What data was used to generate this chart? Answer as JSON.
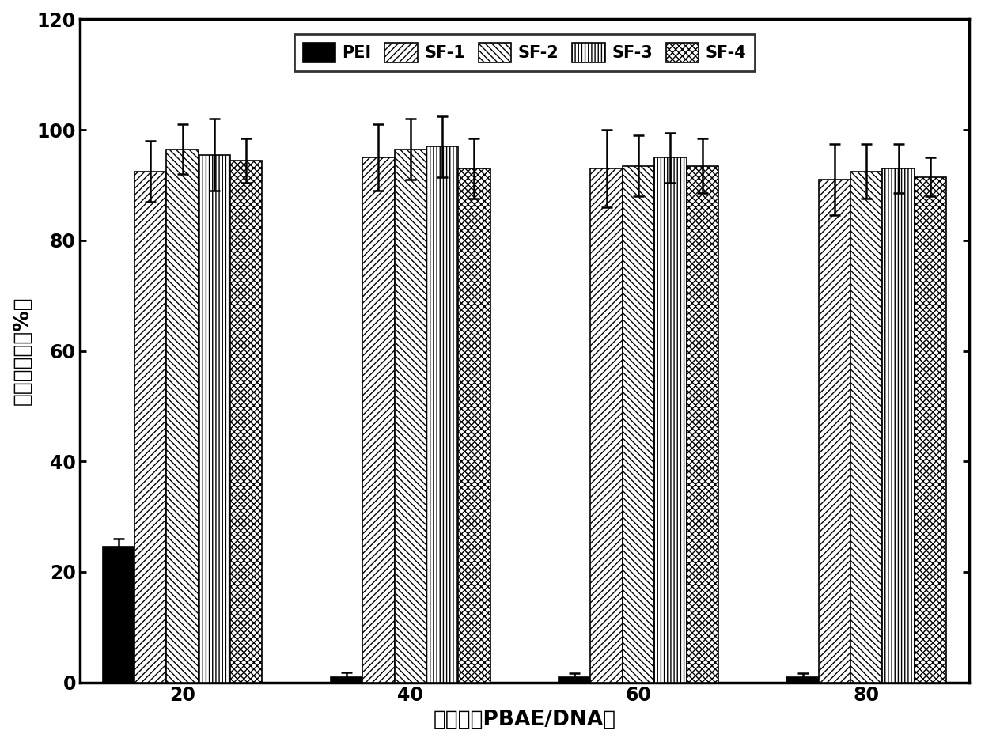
{
  "title": "",
  "xlabel": "质量比（PBAE/DNA）",
  "ylabel": "细胞稳定性（%）",
  "categories": [
    "20",
    "40",
    "60",
    "80"
  ],
  "series": {
    "PEI": {
      "values": [
        24.5,
        1.0,
        1.0,
        1.0
      ],
      "errors": [
        1.5,
        0.8,
        0.6,
        0.7
      ],
      "color": "#000000",
      "hatch": ""
    },
    "SF-1": {
      "values": [
        92.5,
        95.0,
        93.0,
        91.0
      ],
      "errors": [
        5.5,
        6.0,
        7.0,
        6.5
      ],
      "color": "#ffffff",
      "hatch": "////"
    },
    "SF-2": {
      "values": [
        96.5,
        96.5,
        93.5,
        92.5
      ],
      "errors": [
        4.5,
        5.5,
        5.5,
        5.0
      ],
      "color": "#ffffff",
      "hatch": "\\\\\\\\"
    },
    "SF-3": {
      "values": [
        95.5,
        97.0,
        95.0,
        93.0
      ],
      "errors": [
        6.5,
        5.5,
        4.5,
        4.5
      ],
      "color": "#ffffff",
      "hatch": "||||"
    },
    "SF-4": {
      "values": [
        94.5,
        93.0,
        93.5,
        91.5
      ],
      "errors": [
        4.0,
        5.5,
        5.0,
        3.5
      ],
      "color": "#ffffff",
      "hatch": "xxxx"
    }
  },
  "ylim": [
    0,
    120
  ],
  "yticks": [
    0,
    20,
    40,
    60,
    80,
    100,
    120
  ],
  "bar_width": 0.14,
  "edgecolor": "#000000",
  "legend_fontsize": 15,
  "axis_fontsize": 19,
  "tick_fontsize": 17
}
